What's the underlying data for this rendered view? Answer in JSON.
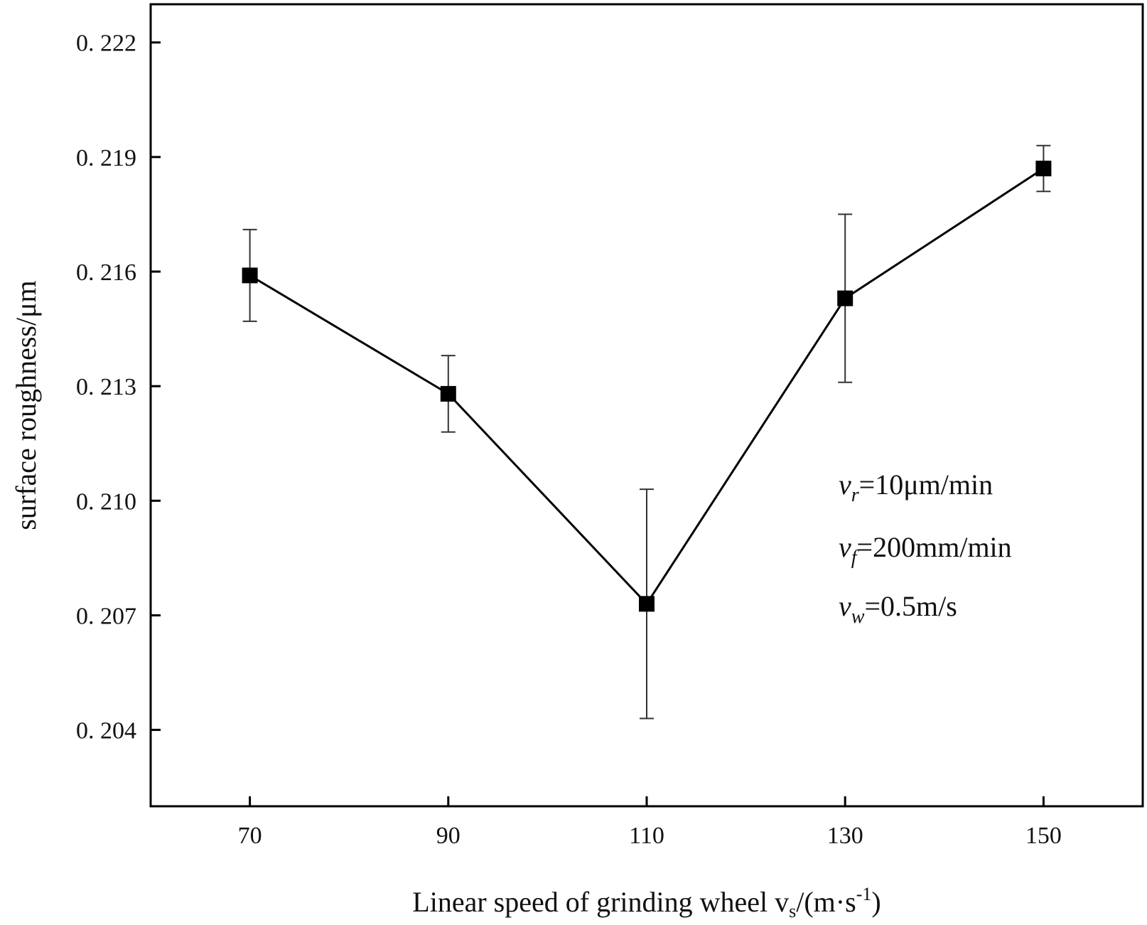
{
  "chart_data": {
    "type": "line",
    "title": "",
    "xlabel": {
      "main": "Linear speed of grinding wheel v",
      "sub": "s",
      "rest": "/(m·s",
      "sup": "-1",
      "end": ")"
    },
    "ylabel": "surface roughness/μm",
    "x_ticks": [
      "70",
      "90",
      "110",
      "130",
      "150"
    ],
    "y_ticks": [
      "0. 204",
      "0. 207",
      "0. 210",
      "0. 213",
      "0. 216",
      "0. 219",
      "0. 222"
    ],
    "xlim": [
      60,
      160
    ],
    "ylim": [
      0.202,
      0.223
    ],
    "series": [
      {
        "x": [
          70,
          90,
          110,
          130,
          150
        ],
        "y": [
          0.2159,
          0.2128,
          0.2073,
          0.2153,
          0.2187
        ],
        "err_low": [
          0.2147,
          0.2118,
          0.2043,
          0.2131,
          0.2181
        ],
        "err_high": [
          0.2171,
          0.2138,
          0.2103,
          0.2175,
          0.2193
        ],
        "marker": "square",
        "color": "#000000"
      }
    ],
    "annotations": [
      {
        "var": "v",
        "sub": "r",
        "text": "=10μm/min"
      },
      {
        "var": "v",
        "sub": "f",
        "text": "=200mm/min"
      },
      {
        "var": "v",
        "sub": "w",
        "text": "=0.5m/s"
      }
    ],
    "grid": false,
    "legend": "none"
  }
}
